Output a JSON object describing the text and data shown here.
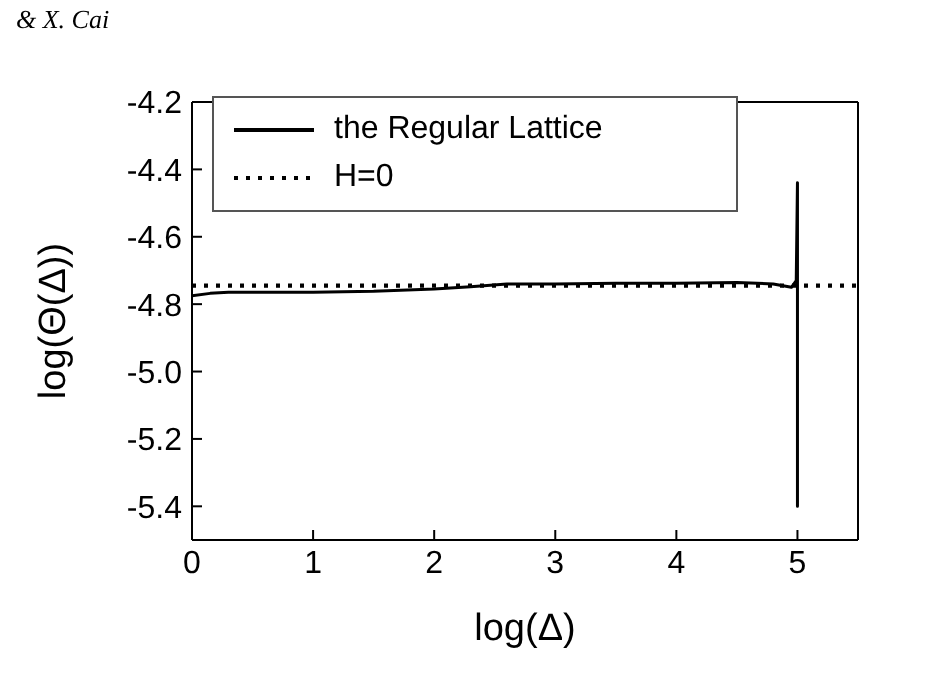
{
  "chart_data": {
    "type": "line",
    "xlabel": "log(Δ)",
    "ylabel": "log(Θ(Δ))",
    "annotations": [
      "& X. Cai"
    ],
    "xlim": [
      0,
      5.5
    ],
    "xticks": [
      0,
      1,
      2,
      3,
      4,
      5
    ],
    "ylim": [
      -5.5,
      -4.2
    ],
    "yticks": [
      {
        "value": -4.2,
        "label": "-4.2"
      },
      {
        "value": -4.4,
        "label": "-4.4"
      },
      {
        "value": -4.6,
        "label": "-4.6"
      },
      {
        "value": -4.8,
        "label": "-4.8"
      },
      {
        "value": -5.0,
        "label": "-5.0"
      },
      {
        "value": -5.2,
        "label": "-5.2"
      },
      {
        "value": -5.4,
        "label": "-5.4"
      }
    ],
    "legend": "top left",
    "marker": "none",
    "series": [
      {
        "name": "the Regular Lattice",
        "color": "#000000",
        "line_style": "solid",
        "x": [
          0,
          0.15,
          0.3,
          0.6,
          1,
          1.5,
          2,
          2.3,
          2.6,
          3,
          3.5,
          4,
          4.5,
          4.8,
          4.95,
          4.99,
          5.0,
          5.0,
          5.0
        ],
        "values": [
          -4.775,
          -4.768,
          -4.765,
          -4.765,
          -4.765,
          -4.762,
          -4.755,
          -4.748,
          -4.74,
          -4.74,
          -4.738,
          -4.738,
          -4.736,
          -4.74,
          -4.75,
          -4.73,
          -4.44,
          -5.4,
          -4.75
        ]
      },
      {
        "name": "H=0",
        "color": "#000000",
        "line_style": "dotted",
        "x": [
          0,
          5.5
        ],
        "values": [
          -4.745,
          -4.745
        ]
      }
    ]
  }
}
